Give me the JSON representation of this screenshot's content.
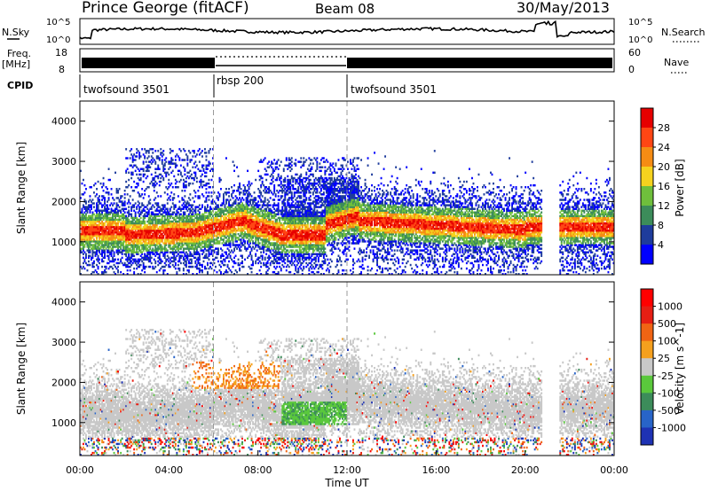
{
  "header": {
    "station": "Prince George (fitACF)",
    "beam": "Beam 08",
    "date": "30/May/2013"
  },
  "top_panels": {
    "nsky_label": "N.Sky",
    "nsky_ticks": [
      "10^5",
      "10^0"
    ],
    "nsearch_label": "N.Search",
    "nsearch_ticks": [
      "10^5",
      "10^0"
    ],
    "freq_label_1": "Freq.",
    "freq_label_2": "[MHz]",
    "freq_ticks": [
      "18",
      "8"
    ],
    "nave_label": "Nave",
    "nave_ticks": [
      "60",
      "0"
    ],
    "cpid_label": "CPID",
    "cpid_segments": [
      {
        "name": "twofsound 3501",
        "start_h": 0,
        "end_h": 6
      },
      {
        "name": "rbsp 200",
        "start_h": 6,
        "end_h": 12
      },
      {
        "name": "twofsound 3501",
        "start_h": 12,
        "end_h": 24
      }
    ]
  },
  "chart_data": [
    {
      "type": "heatmap",
      "title": "",
      "xlabel": "",
      "ylabel": "Slant Range [km]",
      "xlim": [
        0,
        24
      ],
      "ylim": [
        180,
        4500
      ],
      "yticks": [
        "1000",
        "2000",
        "3000",
        "4000"
      ],
      "colorbar_label": "Power [dB]",
      "colorbar_ticks": [
        "28",
        "24",
        "20",
        "16",
        "12",
        "8",
        "4"
      ],
      "colorbar_colors": [
        "#0000ff",
        "#1e3c9c",
        "#3c8c5a",
        "#6fbf3c",
        "#f5d21e",
        "#f58c14",
        "#ff4614",
        "#e60000"
      ]
    },
    {
      "type": "heatmap",
      "title": "",
      "xlabel": "Time UT",
      "ylabel": "Slant Range [km]",
      "xlim": [
        0,
        24
      ],
      "ylim": [
        180,
        4500
      ],
      "xticks": [
        "00:00",
        "04:00",
        "08:00",
        "12:00",
        "16:00",
        "20:00",
        "00:00"
      ],
      "yticks": [
        "1000",
        "2000",
        "3000",
        "4000"
      ],
      "colorbar_label": "Velocity [m s^-1]",
      "colorbar_ticks": [
        "1000",
        "500",
        "100",
        "25",
        "-25",
        "-100",
        "-500",
        "-1000"
      ],
      "colorbar_colors": [
        "#1e32b4",
        "#2864c8",
        "#3c8c5a",
        "#5ac83c",
        "#c8c8c8",
        "#f5a01e",
        "#f06414",
        "#e61e14",
        "#ff0000"
      ]
    }
  ]
}
